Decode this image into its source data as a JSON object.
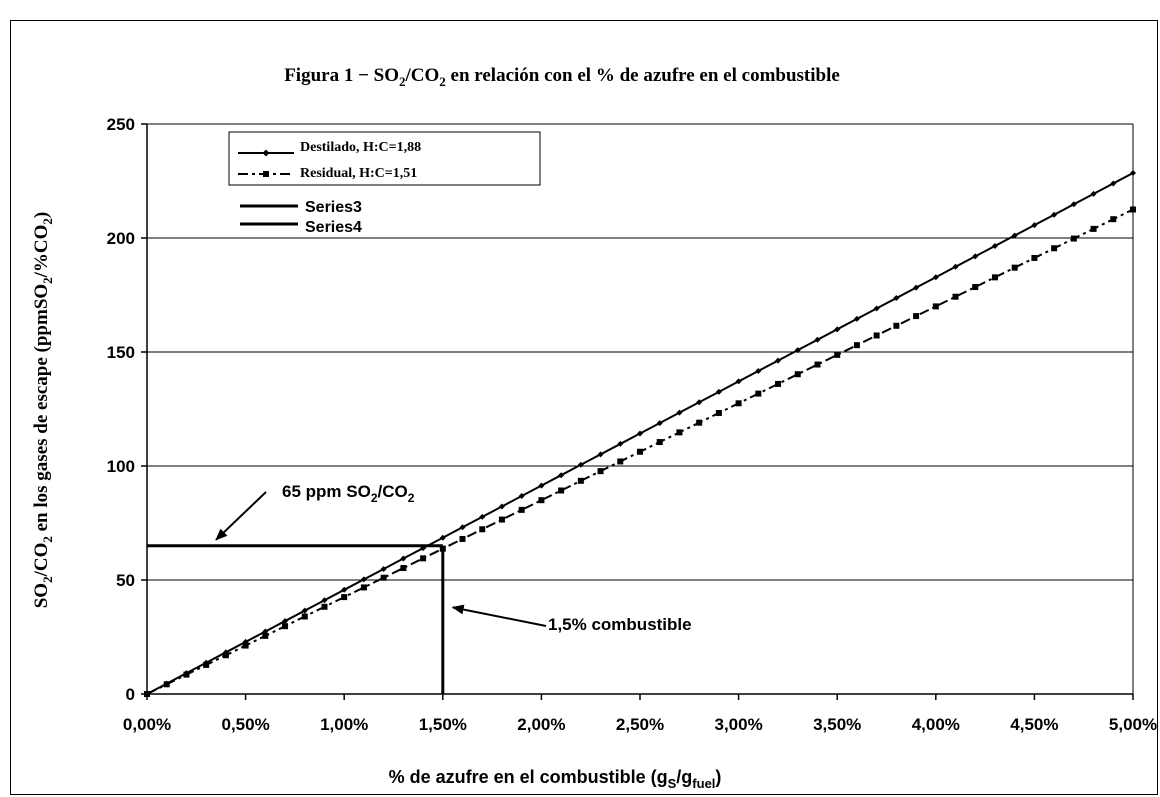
{
  "chart_data": {
    "type": "line",
    "title": "Figura 1 − SO₂/CO₂ en relación con el % de azufre en el combustible",
    "title_parts": {
      "pre": "Figura 1 −  SO",
      "sub1": "2",
      "mid": "/CO",
      "sub2": "2",
      "post": " en relación con el % de azufre en el combustible"
    },
    "xlabel_parts": {
      "pre": "% de azufre en el combustible (g",
      "sub1": "S",
      "mid": "/g",
      "sub2": "fuel",
      "post": ")"
    },
    "ylabel_parts": {
      "a": "SO",
      "a_sub": "2",
      "b": "/CO",
      "b_sub": "2",
      "c": " en los gases de escape (ppmSO",
      "c_sub": "2",
      "d": "/%CO",
      "d_sub": "2",
      "e": ")"
    },
    "xlim": [
      0,
      5
    ],
    "ylim": [
      0,
      250
    ],
    "x_ticks": [
      0,
      0.5,
      1,
      1.5,
      2,
      2.5,
      3,
      3.5,
      4,
      4.5,
      5
    ],
    "x_tick_labels": [
      "0,00%",
      "0,50%",
      "1,00%",
      "1,50%",
      "2,00%",
      "2,50%",
      "3,00%",
      "3,50%",
      "4,00%",
      "4,50%",
      "5,00%"
    ],
    "y_ticks": [
      0,
      50,
      100,
      150,
      200,
      250
    ],
    "y_tick_labels": [
      "0",
      "50",
      "100",
      "150",
      "200",
      "250"
    ],
    "grid": "horizontal",
    "legend_position": "top-left",
    "series": [
      {
        "name": "Destilado, H:C=1,88",
        "style": "solid-diamond",
        "slope": 45.7,
        "x": [
          0,
          0.1,
          0.2,
          0.3,
          0.4,
          0.5,
          0.6,
          0.7,
          0.8,
          0.9,
          1,
          1.1,
          1.2,
          1.3,
          1.4,
          1.5,
          1.6,
          1.7,
          1.8,
          1.9,
          2,
          2.1,
          2.2,
          2.3,
          2.4,
          2.5,
          2.6,
          2.7,
          2.8,
          2.9,
          3,
          3.1,
          3.2,
          3.3,
          3.4,
          3.5,
          3.6,
          3.7,
          3.8,
          3.9,
          4,
          4.1,
          4.2,
          4.3,
          4.4,
          4.5,
          4.6,
          4.7,
          4.8,
          4.9,
          5
        ]
      },
      {
        "name": "Residual, H:C=1,51",
        "style": "dashdot-square",
        "slope": 42.5,
        "x": [
          0,
          0.1,
          0.2,
          0.3,
          0.4,
          0.5,
          0.6,
          0.7,
          0.8,
          0.9,
          1,
          1.1,
          1.2,
          1.3,
          1.4,
          1.5,
          1.6,
          1.7,
          1.8,
          1.9,
          2,
          2.1,
          2.2,
          2.3,
          2.4,
          2.5,
          2.6,
          2.7,
          2.8,
          2.9,
          3,
          3.1,
          3.2,
          3.3,
          3.4,
          3.5,
          3.6,
          3.7,
          3.8,
          3.9,
          4,
          4.1,
          4.2,
          4.3,
          4.4,
          4.5,
          4.6,
          4.7,
          4.8,
          4.9,
          5
        ]
      },
      {
        "name": "Series3",
        "style": "thick-solid",
        "x": [
          0,
          1.5
        ],
        "y": [
          65,
          65
        ]
      },
      {
        "name": "Series4",
        "style": "thick-solid",
        "x": [
          1.5,
          1.5
        ],
        "y": [
          65,
          0
        ]
      }
    ],
    "annotations": {
      "ppm": {
        "pre": "65 ppm SO",
        "sub1": "2",
        "mid": "/CO",
        "sub2": "2",
        "target": [
          0.35,
          65
        ]
      },
      "fuel": {
        "text": "1,5% combustible",
        "target": [
          1.55,
          38
        ]
      }
    }
  }
}
